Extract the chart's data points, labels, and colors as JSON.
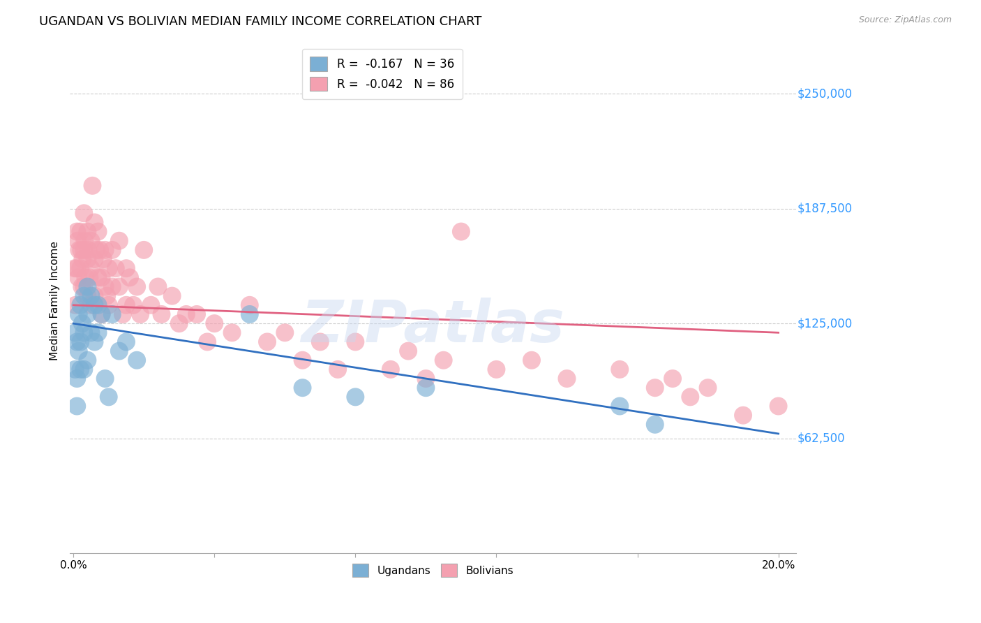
{
  "title": "UGANDAN VS BOLIVIAN MEDIAN FAMILY INCOME CORRELATION CHART",
  "source": "Source: ZipAtlas.com",
  "ylabel": "Median Family Income",
  "ytick_labels": [
    "$62,500",
    "$125,000",
    "$187,500",
    "$250,000"
  ],
  "ytick_values": [
    62500,
    125000,
    187500,
    250000
  ],
  "ymin": 0,
  "ymax": 275000,
  "xmin": -0.001,
  "xmax": 0.205,
  "watermark": "ZIPatlas",
  "legend_line1": "R =  -0.167   N = 36",
  "legend_line2": "R =  -0.042   N = 86",
  "ugandan_color": "#7bafd4",
  "bolivian_color": "#f4a0b0",
  "ugandan_line_color": "#3070c0",
  "bolivian_line_color": "#e06080",
  "ugandan_x": [
    0.0005,
    0.0005,
    0.001,
    0.001,
    0.001,
    0.0015,
    0.0015,
    0.002,
    0.002,
    0.002,
    0.0025,
    0.003,
    0.003,
    0.003,
    0.004,
    0.004,
    0.004,
    0.005,
    0.005,
    0.006,
    0.006,
    0.007,
    0.007,
    0.008,
    0.009,
    0.01,
    0.011,
    0.013,
    0.015,
    0.018,
    0.05,
    0.065,
    0.08,
    0.1,
    0.155,
    0.165
  ],
  "ugandan_y": [
    120000,
    100000,
    115000,
    95000,
    80000,
    130000,
    110000,
    135000,
    115000,
    100000,
    125000,
    140000,
    120000,
    100000,
    145000,
    130000,
    105000,
    140000,
    120000,
    135000,
    115000,
    135000,
    120000,
    130000,
    95000,
    85000,
    130000,
    110000,
    115000,
    105000,
    130000,
    90000,
    85000,
    90000,
    80000,
    70000
  ],
  "bolivian_x": [
    0.0004,
    0.0006,
    0.001,
    0.001,
    0.0012,
    0.0014,
    0.0016,
    0.002,
    0.002,
    0.0022,
    0.0024,
    0.0026,
    0.003,
    0.003,
    0.003,
    0.0032,
    0.0034,
    0.004,
    0.004,
    0.004,
    0.0042,
    0.0046,
    0.005,
    0.005,
    0.005,
    0.0054,
    0.006,
    0.006,
    0.006,
    0.0065,
    0.007,
    0.007,
    0.0075,
    0.008,
    0.008,
    0.0085,
    0.009,
    0.009,
    0.0095,
    0.01,
    0.01,
    0.011,
    0.011,
    0.012,
    0.013,
    0.013,
    0.014,
    0.015,
    0.015,
    0.016,
    0.017,
    0.018,
    0.019,
    0.02,
    0.022,
    0.024,
    0.025,
    0.028,
    0.03,
    0.032,
    0.035,
    0.038,
    0.04,
    0.045,
    0.05,
    0.055,
    0.06,
    0.065,
    0.07,
    0.075,
    0.08,
    0.09,
    0.095,
    0.1,
    0.105,
    0.11,
    0.12,
    0.13,
    0.14,
    0.155,
    0.165,
    0.17,
    0.175,
    0.18,
    0.19,
    0.2
  ],
  "bolivian_y": [
    155000,
    135000,
    175000,
    155000,
    170000,
    150000,
    165000,
    175000,
    155000,
    165000,
    145000,
    160000,
    185000,
    165000,
    145000,
    170000,
    150000,
    175000,
    160000,
    140000,
    165000,
    150000,
    170000,
    155000,
    135000,
    200000,
    180000,
    160000,
    140000,
    165000,
    175000,
    150000,
    165000,
    150000,
    130000,
    160000,
    145000,
    165000,
    140000,
    155000,
    135000,
    165000,
    145000,
    155000,
    170000,
    145000,
    130000,
    155000,
    135000,
    150000,
    135000,
    145000,
    130000,
    165000,
    135000,
    145000,
    130000,
    140000,
    125000,
    130000,
    130000,
    115000,
    125000,
    120000,
    135000,
    115000,
    120000,
    105000,
    115000,
    100000,
    115000,
    100000,
    110000,
    95000,
    105000,
    175000,
    100000,
    105000,
    95000,
    100000,
    90000,
    95000,
    85000,
    90000,
    75000,
    80000
  ]
}
